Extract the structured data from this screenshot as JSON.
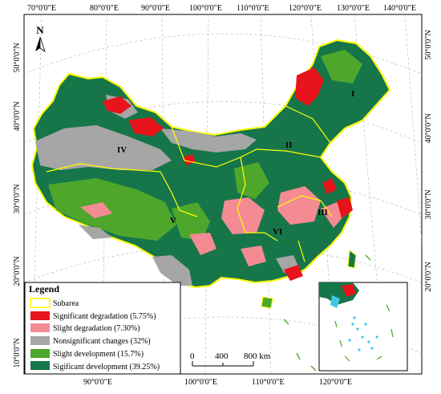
{
  "map": {
    "north_arrow_label": "N",
    "longitude_labels_top": [
      "70°0'0\"E",
      "80°0'0\"E",
      "90°0'0\"E",
      "100°0'0\"E",
      "110°0'0\"E",
      "120°0'0\"E",
      "130°0'0\"E",
      "140°0'0\"E"
    ],
    "longitude_labels_bottom": [
      "90°0'0\"E",
      "100°0'0\"E",
      "110°0'0\"E",
      "120°0'0\"E"
    ],
    "latitude_labels_left": [
      "50°0'0\"N",
      "40°0'0\"N",
      "30°0'0\"N",
      "20°0'0\"N",
      "10°0'0\"N"
    ],
    "latitude_labels_right": [
      "50°0'0\"N",
      "40°0'0\"N",
      "30°0'0\"N",
      "20°0'0\"N"
    ],
    "subarea_labels": [
      "I",
      "II",
      "III",
      "IV",
      "V",
      "VI"
    ],
    "scale_bar": {
      "labels": [
        "0",
        "400",
        "800 km"
      ]
    },
    "colors": {
      "subarea": "#ffff00",
      "significant_degradation": "#e8141c",
      "slight_degradation": "#f48b93",
      "nonsignificant_changes": "#a6a6a6",
      "slight_development": "#4ea72a",
      "significant_development": "#16764a",
      "inset_highlight": "#3ec8e6"
    }
  },
  "legend": {
    "title": "Legend",
    "items": [
      {
        "label": "Subarea",
        "swatch": "outline",
        "color": "#ffff00"
      },
      {
        "label": "Significant degradation (5.75%)",
        "swatch": "fill",
        "color": "#e8141c"
      },
      {
        "label": "Slight degradation (7.30%)",
        "swatch": "fill",
        "color": "#f48b93"
      },
      {
        "label": "Nonsignificant changes (32%)",
        "swatch": "fill",
        "color": "#a6a6a6"
      },
      {
        "label": "Slight development (15.7%)",
        "swatch": "fill",
        "color": "#4ea72a"
      },
      {
        "label": "Sigificant development (39.25%)",
        "swatch": "fill",
        "color": "#16764a"
      }
    ]
  }
}
